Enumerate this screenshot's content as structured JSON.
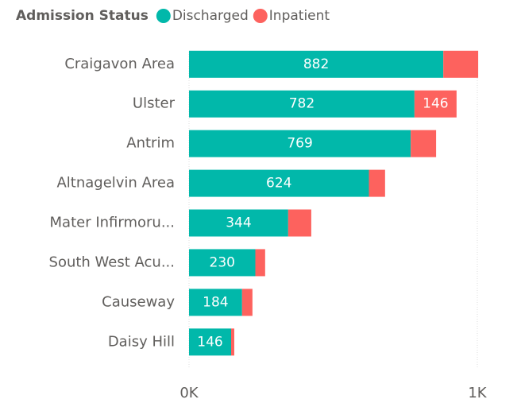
{
  "chart_data": {
    "type": "stacked-bar",
    "orientation": "horizontal",
    "legend_title": "Admission Status",
    "categories": [
      "Craigavon Area",
      "Ulster",
      "Antrim",
      "Altnagelvin Area",
      "Mater Infirmoru...",
      "South West Acu...",
      "Causeway",
      "Daisy Hill"
    ],
    "series": [
      {
        "name": "Discharged",
        "color": "#01B8AA",
        "values": [
          882,
          782,
          769,
          624,
          344,
          230,
          184,
          146
        ],
        "value_labels": [
          "882",
          "782",
          "769",
          "624",
          "344",
          "230",
          "184",
          "146"
        ]
      },
      {
        "name": "Inpatient",
        "color": "#FD625E",
        "values": [
          121,
          146,
          88,
          56,
          80,
          34,
          36,
          11
        ],
        "value_labels": [
          null,
          "146",
          null,
          null,
          null,
          null,
          null,
          null
        ]
      }
    ],
    "xlim": [
      0,
      1000
    ],
    "xticks": [
      {
        "value": 0,
        "label": "0K"
      },
      {
        "value": 1000,
        "label": "1K"
      }
    ],
    "grid": true
  }
}
